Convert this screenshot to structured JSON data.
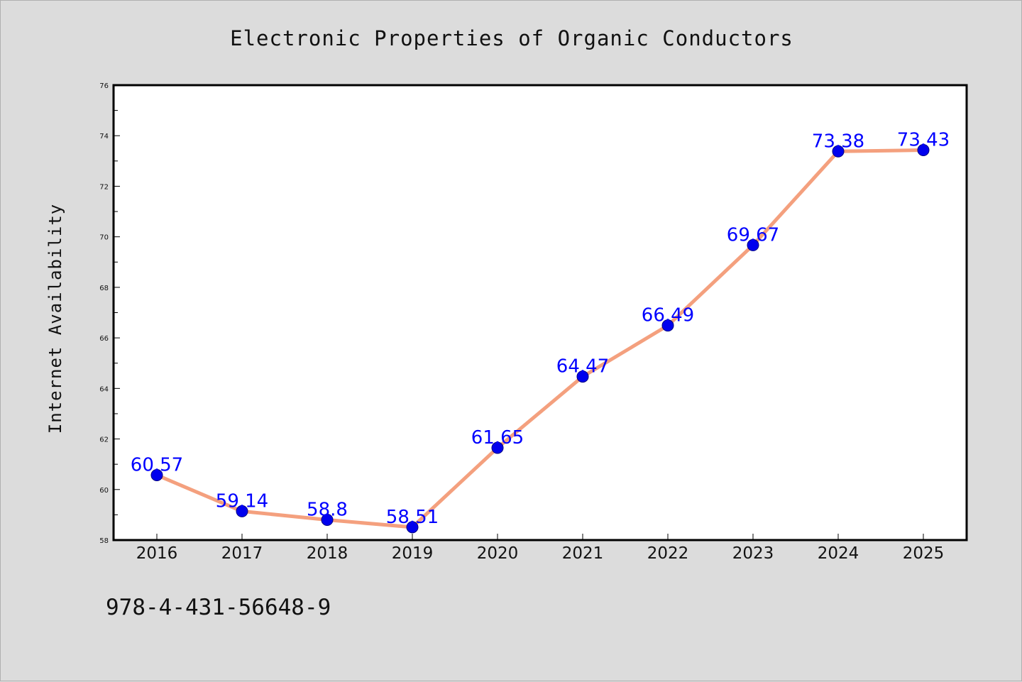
{
  "chart_data": {
    "type": "line",
    "title": "Electronic Properties of Organic Conductors",
    "xlabel": "",
    "ylabel": "Internet Availability",
    "categories": [
      "2016",
      "2017",
      "2018",
      "2019",
      "2020",
      "2021",
      "2022",
      "2023",
      "2024",
      "2025"
    ],
    "series": [
      {
        "values": [
          60.57,
          59.14,
          58.8,
          58.51,
          61.65,
          64.47,
          66.49,
          69.67,
          73.38,
          73.43
        ],
        "labels": [
          "60.57",
          "59.14",
          "58.8",
          "58.51",
          "61.65",
          "64.47",
          "66.49",
          "69.67",
          "73.38",
          "73.43"
        ],
        "line_color": "#f4a07e",
        "marker_color": "#0000ee"
      }
    ],
    "ylim": [
      58,
      76
    ],
    "yticks": [
      "58",
      "60",
      "62",
      "64",
      "66",
      "68",
      "70",
      "72",
      "74",
      "76"
    ],
    "grid": false,
    "legend": "none"
  },
  "footer": {
    "text": "978-4-431-56648-9"
  }
}
